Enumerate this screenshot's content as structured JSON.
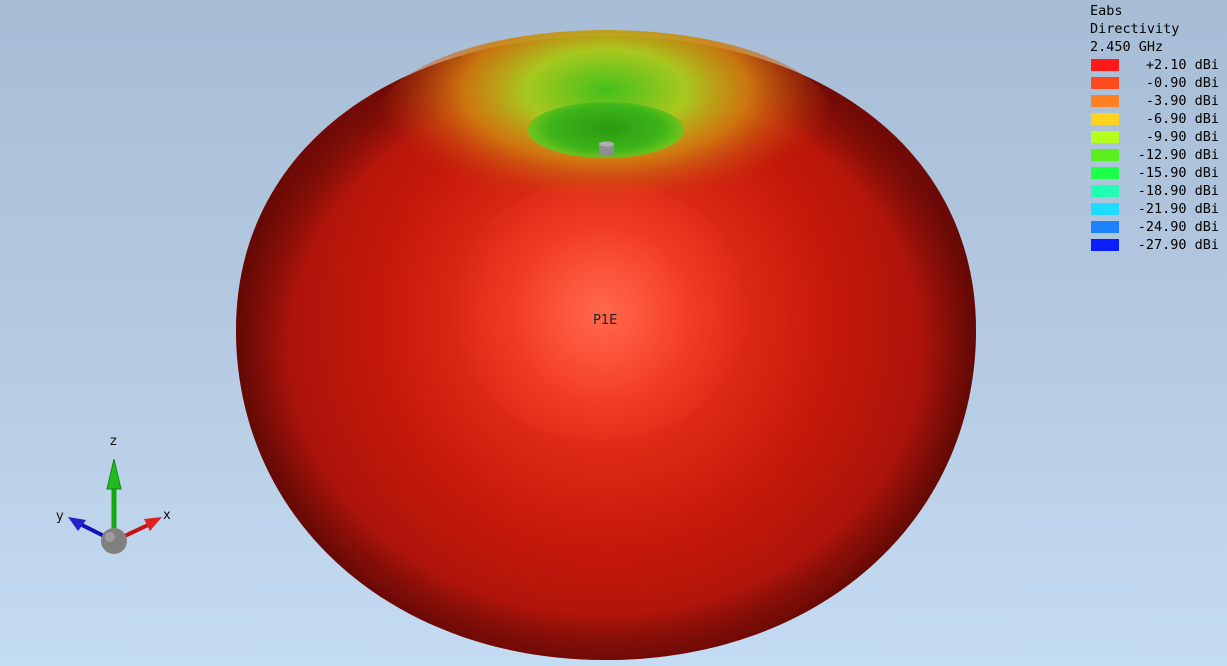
{
  "legend": {
    "quantity": "Eabs",
    "type": "Directivity",
    "frequency": "2.450 GHz",
    "entries": [
      {
        "label": "+2.10 dBi",
        "color": "#ff1a1a"
      },
      {
        "label": "-0.90 dBi",
        "color": "#ff4a1e"
      },
      {
        "label": "-3.90 dBi",
        "color": "#ff8020"
      },
      {
        "label": "-6.90 dBi",
        "color": "#ffd21e"
      },
      {
        "label": "-9.90 dBi",
        "color": "#b4ff1e"
      },
      {
        "label": "-12.90 dBi",
        "color": "#5af01e"
      },
      {
        "label": "-15.90 dBi",
        "color": "#1eff4a"
      },
      {
        "label": "-18.90 dBi",
        "color": "#1effb4"
      },
      {
        "label": "-21.90 dBi",
        "color": "#1edcff"
      },
      {
        "label": "-24.90 dBi",
        "color": "#1e82ff"
      },
      {
        "label": "-27.90 dBi",
        "color": "#0a1eff"
      }
    ]
  },
  "port_label": "P1E",
  "axes": {
    "x": "x",
    "y": "y",
    "z": "z",
    "x_color": "#cc1111",
    "y_color": "#1111bb",
    "z_color": "#11aa11"
  },
  "pattern_colors": {
    "body": "#c41a08",
    "highlight": "#ff5a3c",
    "edge": "#7a0e04",
    "top_ring": "#d48a10",
    "dimple": "#34b01a"
  }
}
